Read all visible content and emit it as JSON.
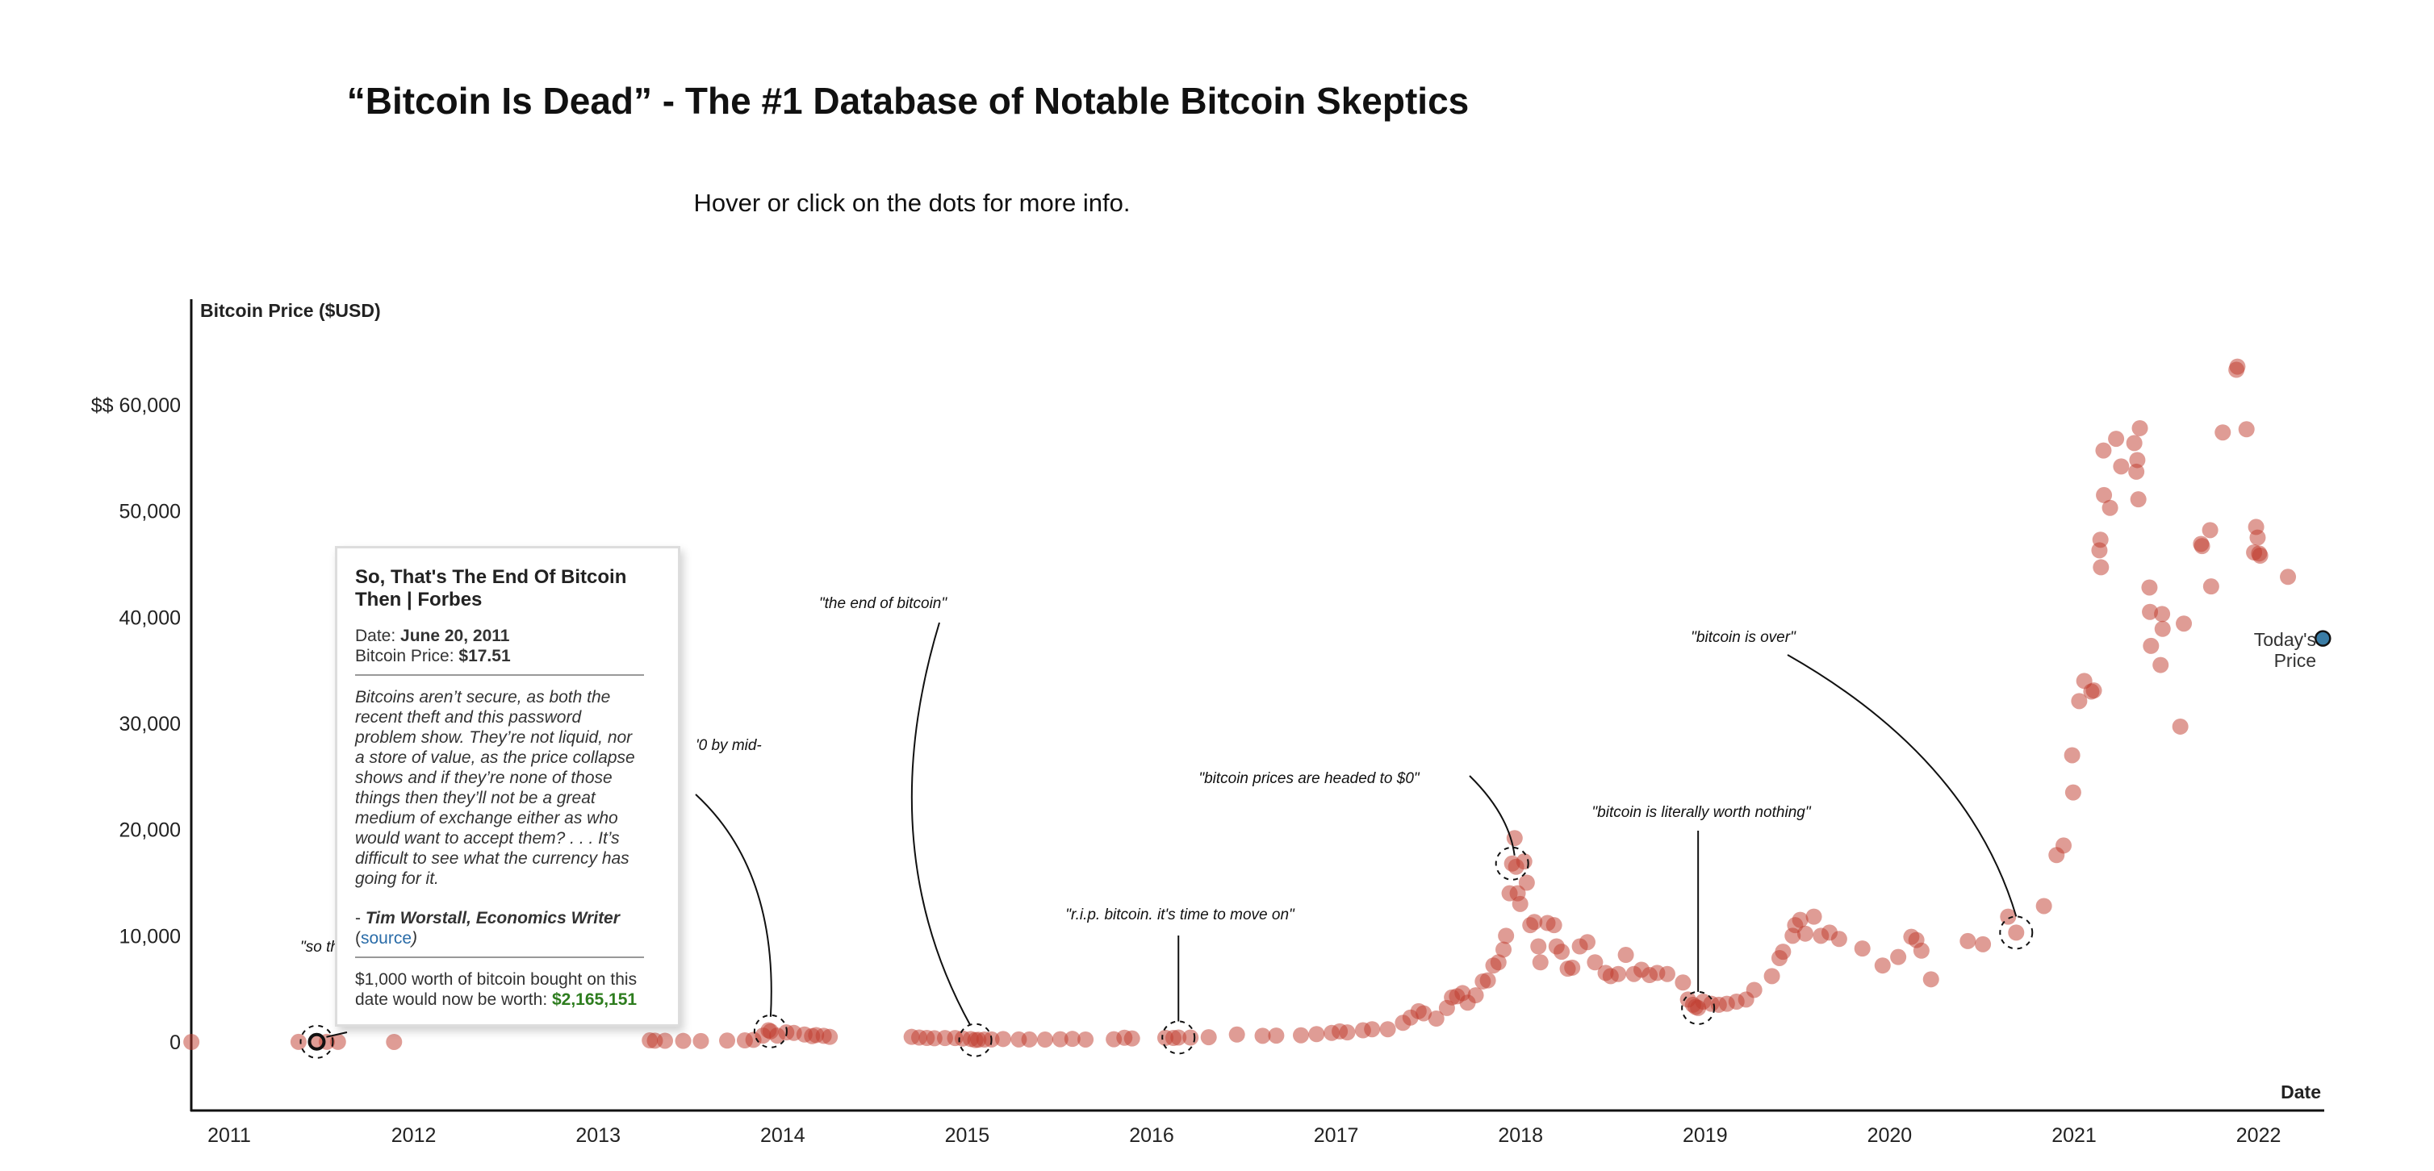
{
  "header": {
    "title": "“Bitcoin Is Dead” - The #1 Database of Notable Bitcoin Skeptics",
    "subtitle": "Hover or click on the dots for more info."
  },
  "tooltip": {
    "title": "So, That's The End Of Bitcoin Then | Forbes",
    "date_label": "Date: ",
    "date_value": "June 20, 2011",
    "price_label": "Bitcoin Price: ",
    "price_value": "$17.51",
    "quote": "Bitcoins aren’t secure, as both the recent theft and this password problem show. They’re not liquid, nor a store of value, as the price collapse shows and if they’re none of those things then they’ll not be a great medium of exchange either as who would want to accept them? . . . It’s difficult to see what the currency has going for it.",
    "author_prefix": "- ",
    "author": "Tim Worstall, Economics Writer",
    "source_open": "(",
    "source_link": "source",
    "source_close": ")",
    "worth_text": "$1,000 worth of bitcoin bought on this date would now be worth: ",
    "worth_value": "$2,165,151"
  },
  "today_label": [
    "Today's",
    "Price"
  ],
  "chart_data": {
    "type": "scatter",
    "ylabel": "Bitcoin Price ($USD)",
    "xlabel": "Date",
    "ylim": [
      -7000,
      70000
    ],
    "xlim": [
      "2010-10-15",
      "2022-05-15"
    ],
    "y_ticks": [
      {
        "value": 0,
        "label": "0"
      },
      {
        "value": 10000,
        "label": "10,000"
      },
      {
        "value": 20000,
        "label": "20,000"
      },
      {
        "value": 30000,
        "label": "30,000"
      },
      {
        "value": 40000,
        "label": "40,000"
      },
      {
        "value": 50000,
        "label": "50,000"
      },
      {
        "value": 60000,
        "label": "$$ 60,000"
      }
    ],
    "x_ticks": [
      "2011",
      "2012",
      "2013",
      "2014",
      "2015",
      "2016",
      "2017",
      "2018",
      "2019",
      "2020",
      "2021",
      "2022"
    ],
    "grid": false,
    "colors": {
      "point": "#c0392b",
      "today": "#3a7ca5"
    },
    "selected_point": {
      "date": "2011-06-20",
      "price": 17.51
    },
    "today_price": {
      "date": "2022-05-05",
      "price": 38000
    },
    "annotations": [
      {
        "text": "\"so th",
        "date": "2011-06-20",
        "price": 17.51
      },
      {
        "text": "'0 by mid-",
        "date": "2013-12-05",
        "price": 1000
      },
      {
        "text": "\"the end of bitcoin\"",
        "date": "2015-01-14",
        "price": 180
      },
      {
        "text": "\"r.i.p. bitcoin. it's time to move on\"",
        "date": "2016-02-20",
        "price": 420
      },
      {
        "text": "\"bitcoin prices are headed to $0\"",
        "date": "2017-12-12",
        "price": 16800
      },
      {
        "text": "\"bitcoin is literally worth nothing\"",
        "date": "2018-12-15",
        "price": 3200
      },
      {
        "text": "\"bitcoin is over\"",
        "date": "2020-09-05",
        "price": 10300
      }
    ],
    "points": [
      [
        "2010-10-15",
        0.1
      ],
      [
        "2011-05-15",
        7
      ],
      [
        "2011-06-20",
        17.51
      ],
      [
        "2011-07-10",
        14
      ],
      [
        "2011-08-01",
        10
      ],
      [
        "2011-11-20",
        3
      ],
      [
        "2013-04-10",
        150
      ],
      [
        "2013-04-20",
        120
      ],
      [
        "2013-05-10",
        115
      ],
      [
        "2013-06-15",
        100
      ],
      [
        "2013-07-20",
        90
      ],
      [
        "2013-09-10",
        130
      ],
      [
        "2013-10-15",
        150
      ],
      [
        "2013-11-01",
        200
      ],
      [
        "2013-11-20",
        600
      ],
      [
        "2013-12-01",
        1100
      ],
      [
        "2013-12-05",
        1000
      ],
      [
        "2013-12-18",
        600
      ],
      [
        "2014-01-05",
        900
      ],
      [
        "2014-01-20",
        850
      ],
      [
        "2014-02-10",
        700
      ],
      [
        "2014-02-25",
        550
      ],
      [
        "2014-03-05",
        650
      ],
      [
        "2014-03-20",
        580
      ],
      [
        "2014-04-01",
        480
      ],
      [
        "2014-09-10",
        480
      ],
      [
        "2014-09-25",
        420
      ],
      [
        "2014-10-10",
        380
      ],
      [
        "2014-10-25",
        350
      ],
      [
        "2014-11-15",
        370
      ],
      [
        "2014-12-05",
        370
      ],
      [
        "2014-12-20",
        320
      ],
      [
        "2015-01-05",
        280
      ],
      [
        "2015-01-14",
        180
      ],
      [
        "2015-01-20",
        210
      ],
      [
        "2015-02-01",
        230
      ],
      [
        "2015-02-15",
        240
      ],
      [
        "2015-03-10",
        280
      ],
      [
        "2015-04-10",
        240
      ],
      [
        "2015-05-01",
        235
      ],
      [
        "2015-06-01",
        225
      ],
      [
        "2015-07-01",
        260
      ],
      [
        "2015-07-25",
        290
      ],
      [
        "2015-08-20",
        230
      ],
      [
        "2015-10-15",
        260
      ],
      [
        "2015-11-05",
        400
      ],
      [
        "2015-11-20",
        330
      ],
      [
        "2016-01-25",
        390
      ],
      [
        "2016-02-10",
        380
      ],
      [
        "2016-02-20",
        420
      ],
      [
        "2016-03-15",
        415
      ],
      [
        "2016-04-20",
        450
      ],
      [
        "2016-06-15",
        700
      ],
      [
        "2016-08-05",
        580
      ],
      [
        "2016-09-01",
        600
      ],
      [
        "2016-10-20",
        630
      ],
      [
        "2016-11-20",
        740
      ],
      [
        "2016-12-20",
        850
      ],
      [
        "2017-01-05",
        1000
      ],
      [
        "2017-01-20",
        900
      ],
      [
        "2017-02-20",
        1100
      ],
      [
        "2017-03-10",
        1200
      ],
      [
        "2017-04-10",
        1200
      ],
      [
        "2017-05-10",
        1800
      ],
      [
        "2017-05-25",
        2300
      ],
      [
        "2017-06-10",
        2900
      ],
      [
        "2017-06-20",
        2700
      ],
      [
        "2017-07-15",
        2200
      ],
      [
        "2017-08-05",
        3200
      ],
      [
        "2017-08-15",
        4200
      ],
      [
        "2017-08-25",
        4300
      ],
      [
        "2017-09-05",
        4600
      ],
      [
        "2017-09-15",
        3700
      ],
      [
        "2017-10-01",
        4400
      ],
      [
        "2017-10-15",
        5700
      ],
      [
        "2017-10-25",
        5800
      ],
      [
        "2017-11-05",
        7200
      ],
      [
        "2017-11-15",
        7500
      ],
      [
        "2017-11-25",
        8700
      ],
      [
        "2017-11-30",
        10000
      ],
      [
        "2017-12-07",
        14000
      ],
      [
        "2017-12-12",
        16800
      ],
      [
        "2017-12-17",
        19200
      ],
      [
        "2017-12-20",
        16500
      ],
      [
        "2017-12-23",
        14000
      ],
      [
        "2017-12-28",
        13000
      ],
      [
        "2018-01-05",
        17000
      ],
      [
        "2018-01-10",
        15000
      ],
      [
        "2018-01-17",
        11000
      ],
      [
        "2018-01-25",
        11300
      ],
      [
        "2018-02-02",
        9000
      ],
      [
        "2018-02-06",
        7500
      ],
      [
        "2018-02-20",
        11200
      ],
      [
        "2018-03-05",
        11000
      ],
      [
        "2018-03-10",
        9000
      ],
      [
        "2018-03-20",
        8500
      ],
      [
        "2018-04-01",
        6900
      ],
      [
        "2018-04-10",
        7000
      ],
      [
        "2018-04-25",
        9000
      ],
      [
        "2018-05-10",
        9400
      ],
      [
        "2018-05-25",
        7500
      ],
      [
        "2018-06-15",
        6500
      ],
      [
        "2018-06-25",
        6200
      ],
      [
        "2018-07-10",
        6400
      ],
      [
        "2018-07-25",
        8200
      ],
      [
        "2018-08-10",
        6400
      ],
      [
        "2018-08-25",
        6800
      ],
      [
        "2018-09-10",
        6300
      ],
      [
        "2018-09-25",
        6500
      ],
      [
        "2018-10-15",
        6400
      ],
      [
        "2018-11-15",
        5600
      ],
      [
        "2018-11-25",
        4000
      ],
      [
        "2018-12-05",
        3500
      ],
      [
        "2018-12-10",
        3300
      ],
      [
        "2018-12-15",
        3200
      ],
      [
        "2018-12-25",
        3800
      ],
      [
        "2019-01-10",
        3600
      ],
      [
        "2019-01-25",
        3500
      ],
      [
        "2019-02-10",
        3600
      ],
      [
        "2019-03-01",
        3800
      ],
      [
        "2019-03-20",
        4000
      ],
      [
        "2019-04-05",
        4900
      ],
      [
        "2019-05-10",
        6200
      ],
      [
        "2019-05-25",
        7900
      ],
      [
        "2019-06-01",
        8500
      ],
      [
        "2019-06-20",
        10000
      ],
      [
        "2019-06-25",
        11000
      ],
      [
        "2019-07-05",
        11500
      ],
      [
        "2019-07-15",
        10200
      ],
      [
        "2019-08-01",
        11800
      ],
      [
        "2019-08-15",
        10000
      ],
      [
        "2019-09-01",
        10300
      ],
      [
        "2019-09-20",
        9700
      ],
      [
        "2019-11-05",
        8800
      ],
      [
        "2019-12-15",
        7200
      ],
      [
        "2020-01-15",
        8000
      ],
      [
        "2020-02-10",
        9900
      ],
      [
        "2020-02-20",
        9600
      ],
      [
        "2020-03-01",
        8600
      ],
      [
        "2020-03-20",
        5900
      ],
      [
        "2020-06-01",
        9500
      ],
      [
        "2020-07-01",
        9200
      ],
      [
        "2020-08-20",
        11800
      ],
      [
        "2020-09-05",
        10300
      ],
      [
        "2020-10-30",
        12800
      ],
      [
        "2020-11-24",
        17600
      ],
      [
        "2020-12-08",
        18500
      ],
      [
        "2020-12-25",
        27000
      ],
      [
        "2020-12-27",
        23500
      ],
      [
        "2021-01-08",
        32100
      ],
      [
        "2021-01-18",
        34000
      ],
      [
        "2021-02-01",
        33000
      ],
      [
        "2021-02-06",
        33100
      ],
      [
        "2021-02-17",
        46300
      ],
      [
        "2021-02-19",
        47300
      ],
      [
        "2021-02-20",
        44700
      ],
      [
        "2021-02-25",
        55700
      ],
      [
        "2021-02-26",
        51500
      ],
      [
        "2021-03-10",
        50300
      ],
      [
        "2021-03-22",
        56800
      ],
      [
        "2021-04-01",
        54200
      ],
      [
        "2021-04-27",
        56400
      ],
      [
        "2021-05-01",
        53700
      ],
      [
        "2021-05-03",
        54800
      ],
      [
        "2021-05-05",
        51100
      ],
      [
        "2021-05-08",
        57800
      ],
      [
        "2021-05-27",
        42800
      ],
      [
        "2021-05-28",
        40500
      ],
      [
        "2021-05-30",
        37300
      ],
      [
        "2021-06-18",
        35500
      ],
      [
        "2021-06-21",
        40300
      ],
      [
        "2021-06-22",
        38900
      ],
      [
        "2021-07-27",
        29700
      ],
      [
        "2021-08-03",
        39400
      ],
      [
        "2021-09-06",
        46900
      ],
      [
        "2021-09-08",
        46700
      ],
      [
        "2021-09-24",
        48200
      ],
      [
        "2021-09-26",
        42900
      ],
      [
        "2021-10-19",
        57400
      ],
      [
        "2021-11-15",
        63300
      ],
      [
        "2021-11-17",
        63600
      ],
      [
        "2021-12-05",
        57700
      ],
      [
        "2021-12-20",
        46100
      ],
      [
        "2021-12-24",
        48500
      ],
      [
        "2021-12-27",
        47500
      ],
      [
        "2021-12-30",
        46000
      ],
      [
        "2022-01-01",
        45800
      ],
      [
        "2022-02-25",
        43800
      ]
    ]
  }
}
